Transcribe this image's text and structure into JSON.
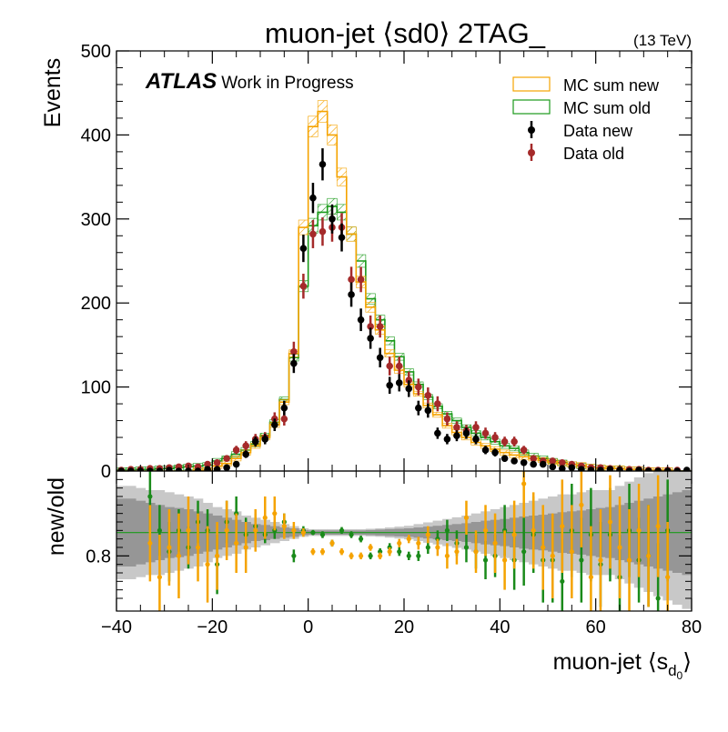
{
  "chart_data": [
    {
      "type": "histogram",
      "panel": "main",
      "title": "muon-jet ⟨sd0⟩ 2TAG_",
      "energy_label": "(13 TeV)",
      "ylabel": "Events",
      "xlim": [
        -40,
        80
      ],
      "ylim": [
        0,
        500
      ],
      "yticks": [
        0,
        100,
        200,
        300,
        400,
        500
      ],
      "atlas_label": "ATLAS",
      "atlas_sublabel": "Work in Progress",
      "legend_position": "top-right",
      "legend": [
        "MC sum new",
        "MC sum old",
        "Data new",
        "Data old"
      ],
      "bin_edges": [
        -40,
        -38,
        -36,
        -34,
        -32,
        -30,
        -28,
        -26,
        -24,
        -22,
        -20,
        -18,
        -16,
        -14,
        -12,
        -10,
        -8,
        -6,
        -4,
        -2,
        0,
        2,
        4,
        6,
        8,
        10,
        12,
        14,
        16,
        18,
        20,
        22,
        24,
        26,
        28,
        30,
        32,
        34,
        36,
        38,
        40,
        42,
        44,
        46,
        48,
        50,
        52,
        54,
        56,
        58,
        60,
        62,
        64,
        66,
        68,
        70,
        72,
        74,
        76,
        78,
        80
      ],
      "series": [
        {
          "name": "MC sum new",
          "style": "step-hatched",
          "color": "#f5a300",
          "values": [
            0,
            0,
            0,
            0,
            0,
            0,
            0,
            0,
            1,
            1,
            6,
            9,
            15,
            22,
            30,
            40,
            55,
            82,
            140,
            290,
            410,
            428,
            400,
            350,
            282,
            225,
            195,
            168,
            140,
            120,
            103,
            92,
            78,
            67,
            54,
            46,
            40,
            34,
            30,
            26,
            22,
            19,
            17,
            15,
            13,
            11,
            9,
            8,
            7,
            5,
            4,
            3,
            3,
            2,
            2,
            1,
            1,
            1,
            0,
            0
          ]
        },
        {
          "name": "MC sum old",
          "style": "step-hatched",
          "color": "#1a9a1a",
          "values": [
            1,
            1,
            2,
            2,
            3,
            3,
            4,
            5,
            6,
            7,
            12,
            15,
            20,
            25,
            32,
            42,
            58,
            85,
            135,
            220,
            292,
            308,
            315,
            308,
            282,
            250,
            205,
            180,
            155,
            136,
            118,
            103,
            88,
            77,
            68,
            60,
            52,
            45,
            40,
            35,
            30,
            27,
            22,
            18,
            15,
            12,
            10,
            8,
            6,
            5,
            4,
            3,
            3,
            2,
            2,
            1,
            1,
            1,
            0,
            0
          ]
        },
        {
          "name": "Data new",
          "style": "points",
          "color": "#000000",
          "values": [
            0,
            0,
            0,
            0,
            0,
            1,
            0,
            0,
            0,
            2,
            2,
            4,
            8,
            20,
            35,
            38,
            55,
            75,
            128,
            265,
            325,
            365,
            300,
            278,
            210,
            180,
            158,
            135,
            102,
            105,
            98,
            75,
            72,
            45,
            38,
            42,
            45,
            38,
            25,
            22,
            15,
            12,
            10,
            8,
            8,
            5,
            3,
            4,
            2,
            1,
            1,
            2,
            1,
            0,
            1,
            0,
            0,
            0,
            0,
            1
          ]
        },
        {
          "name": "Data old",
          "style": "points",
          "color": "#a52a2a",
          "values": [
            1,
            2,
            2,
            3,
            3,
            4,
            5,
            6,
            5,
            8,
            10,
            15,
            25,
            30,
            38,
            40,
            62,
            62,
            142,
            220,
            282,
            285,
            290,
            290,
            228,
            228,
            172,
            172,
            125,
            125,
            108,
            100,
            90,
            80,
            62,
            52,
            48,
            52,
            45,
            40,
            35,
            35,
            25,
            15,
            12,
            12,
            10,
            8,
            6,
            4,
            4,
            3,
            2,
            2,
            2,
            1,
            1,
            1,
            1,
            0
          ]
        }
      ]
    },
    {
      "type": "ratio",
      "panel": "lower",
      "ylabel": "new/old",
      "xlabel": "muon-jet ⟨s",
      "xlabel_sub": "d",
      "xlabel_subsub": "0",
      "xlabel_end": "⟩",
      "xlim": [
        -40,
        80
      ],
      "xticks": [
        -40,
        -20,
        0,
        20,
        40,
        60,
        80
      ],
      "x_tick_labels": [
        "−40",
        "−20",
        "0",
        "20",
        "40",
        "60",
        "80"
      ],
      "ylim": [
        0.67,
        1.0
      ],
      "yticks": [
        0.8
      ],
      "y_tick_labels": [
        "0.8"
      ],
      "reference_line": 0.855,
      "bands": [
        {
          "name": "syst light",
          "color": "#c8c8c8",
          "half_width": [
            0.11,
            0.11,
            0.105,
            0.1,
            0.1,
            0.095,
            0.09,
            0.085,
            0.08,
            0.07,
            0.06,
            0.055,
            0.05,
            0.04,
            0.035,
            0.03,
            0.025,
            0.02,
            0.015,
            0.01,
            0.008,
            0.008,
            0.008,
            0.008,
            0.008,
            0.008,
            0.009,
            0.01,
            0.012,
            0.014,
            0.016,
            0.02,
            0.024,
            0.028,
            0.032,
            0.036,
            0.04,
            0.045,
            0.05,
            0.055,
            0.06,
            0.065,
            0.07,
            0.075,
            0.08,
            0.085,
            0.09,
            0.09,
            0.095,
            0.1,
            0.1,
            0.1,
            0.11,
            0.12,
            0.13,
            0.14,
            0.15,
            0.16,
            0.17,
            0.18
          ]
        },
        {
          "name": "syst dark",
          "color": "#969696",
          "half_width": [
            0.08,
            0.08,
            0.075,
            0.07,
            0.065,
            0.06,
            0.058,
            0.055,
            0.05,
            0.045,
            0.04,
            0.035,
            0.03,
            0.025,
            0.02,
            0.018,
            0.015,
            0.012,
            0.01,
            0.006,
            0.005,
            0.005,
            0.005,
            0.005,
            0.005,
            0.005,
            0.006,
            0.007,
            0.008,
            0.009,
            0.01,
            0.012,
            0.014,
            0.016,
            0.018,
            0.02,
            0.022,
            0.025,
            0.028,
            0.03,
            0.032,
            0.035,
            0.038,
            0.04,
            0.042,
            0.045,
            0.048,
            0.05,
            0.052,
            0.055,
            0.058,
            0.06,
            0.065,
            0.07,
            0.075,
            0.08,
            0.085,
            0.09,
            0.095,
            0.1
          ]
        }
      ],
      "series": [
        {
          "name": "ratio data",
          "color": "#1a8a1a",
          "points": [
            [
              -33,
              0.94,
              0.08
            ],
            [
              -31,
              0.86,
              0.06
            ],
            [
              -29,
              0.81,
              0.07
            ],
            [
              -27,
              0.86,
              0.05
            ],
            [
              -25,
              0.82,
              0.05
            ],
            [
              -23,
              0.88,
              0.05
            ],
            [
              -21,
              0.86,
              0.05
            ],
            [
              -19,
              0.78,
              0.07
            ],
            [
              -17,
              0.88,
              0.05
            ],
            [
              -15,
              0.9,
              0.04
            ],
            [
              -13,
              0.85,
              0.04
            ],
            [
              -11,
              0.87,
              0.03
            ],
            [
              -9,
              0.85,
              0.02
            ],
            [
              -7,
              0.86,
              0.02
            ],
            [
              -5,
              0.88,
              0.02
            ],
            [
              -3,
              0.8,
              0.015
            ],
            [
              -1,
              0.86,
              0.01
            ],
            [
              1,
              0.855,
              0.006
            ],
            [
              3,
              0.85,
              0.008
            ],
            [
              5,
              0.83,
              0.008
            ],
            [
              7,
              0.86,
              0.008
            ],
            [
              9,
              0.85,
              0.008
            ],
            [
              11,
              0.84,
              0.008
            ],
            [
              13,
              0.8,
              0.008
            ],
            [
              15,
              0.81,
              0.008
            ],
            [
              17,
              0.82,
              0.01
            ],
            [
              19,
              0.81,
              0.01
            ],
            [
              21,
              0.8,
              0.01
            ],
            [
              23,
              0.8,
              0.012
            ],
            [
              25,
              0.82,
              0.015
            ],
            [
              27,
              0.84,
              0.02
            ],
            [
              29,
              0.86,
              0.025
            ],
            [
              31,
              0.83,
              0.03
            ],
            [
              33,
              0.82,
              0.035
            ],
            [
              35,
              0.81,
              0.04
            ],
            [
              37,
              0.79,
              0.045
            ],
            [
              39,
              0.8,
              0.05
            ],
            [
              41,
              0.86,
              0.06
            ],
            [
              43,
              0.79,
              0.07
            ],
            [
              45,
              0.81,
              0.08
            ],
            [
              47,
              0.85,
              0.09
            ],
            [
              49,
              0.79,
              0.1
            ],
            [
              51,
              0.79,
              0.1
            ],
            [
              53,
              0.74,
              0.1
            ],
            [
              55,
              0.86,
              0.11
            ],
            [
              57,
              0.79,
              0.1
            ],
            [
              59,
              0.85,
              0.11
            ],
            [
              61,
              0.78,
              0.1
            ],
            [
              63,
              0.85,
              0.11
            ],
            [
              65,
              0.75,
              0.1
            ],
            [
              67,
              0.86,
              0.11
            ],
            [
              69,
              0.79,
              0.1
            ],
            [
              71,
              0.8,
              0.12
            ],
            [
              73,
              0.7,
              0.13
            ],
            [
              75,
              0.86,
              0.12
            ]
          ]
        },
        {
          "name": "ratio mc",
          "color": "#f5a300",
          "points": [
            [
              -33,
              0.83,
              0.09
            ],
            [
              -31,
              0.75,
              0.1
            ],
            [
              -29,
              0.82,
              0.09
            ],
            [
              -27,
              0.8,
              0.1
            ],
            [
              -25,
              0.86,
              0.08
            ],
            [
              -23,
              0.82,
              0.08
            ],
            [
              -21,
              0.78,
              0.09
            ],
            [
              -19,
              0.8,
              0.08
            ],
            [
              -17,
              0.86,
              0.07
            ],
            [
              -15,
              0.83,
              0.07
            ],
            [
              -13,
              0.82,
              0.06
            ],
            [
              -11,
              0.86,
              0.05
            ],
            [
              -9,
              0.89,
              0.05
            ],
            [
              -7,
              0.9,
              0.04
            ],
            [
              -5,
              0.87,
              0.03
            ],
            [
              -3,
              0.86,
              0.02
            ],
            [
              -1,
              0.855,
              0.01
            ],
            [
              1,
              0.81,
              0.008
            ],
            [
              3,
              0.81,
              0.008
            ],
            [
              5,
              0.83,
              0.008
            ],
            [
              7,
              0.81,
              0.008
            ],
            [
              9,
              0.8,
              0.008
            ],
            [
              11,
              0.8,
              0.008
            ],
            [
              13,
              0.82,
              0.008
            ],
            [
              15,
              0.8,
              0.008
            ],
            [
              17,
              0.81,
              0.01
            ],
            [
              19,
              0.83,
              0.01
            ],
            [
              21,
              0.84,
              0.01
            ],
            [
              23,
              0.83,
              0.015
            ],
            [
              25,
              0.85,
              0.02
            ],
            [
              27,
              0.82,
              0.02
            ],
            [
              29,
              0.8,
              0.03
            ],
            [
              31,
              0.81,
              0.03
            ],
            [
              33,
              0.89,
              0.04
            ],
            [
              35,
              0.81,
              0.05
            ],
            [
              37,
              0.86,
              0.06
            ],
            [
              39,
              0.83,
              0.07
            ],
            [
              41,
              0.79,
              0.07
            ],
            [
              43,
              0.85,
              0.08
            ],
            [
              45,
              0.97,
              0.08
            ],
            [
              47,
              0.86,
              0.09
            ],
            [
              49,
              0.82,
              0.1
            ],
            [
              51,
              0.8,
              0.1
            ],
            [
              53,
              0.87,
              0.11
            ],
            [
              55,
              0.81,
              0.11
            ],
            [
              57,
              0.92,
              0.1
            ],
            [
              59,
              0.75,
              0.12
            ],
            [
              61,
              0.79,
              0.12
            ],
            [
              63,
              0.88,
              0.11
            ],
            [
              65,
              0.82,
              0.12
            ],
            [
              67,
              0.79,
              0.12
            ],
            [
              69,
              0.86,
              0.11
            ],
            [
              71,
              0.8,
              0.12
            ],
            [
              73,
              0.87,
              0.12
            ],
            [
              75,
              0.75,
              0.13
            ]
          ]
        }
      ]
    }
  ]
}
